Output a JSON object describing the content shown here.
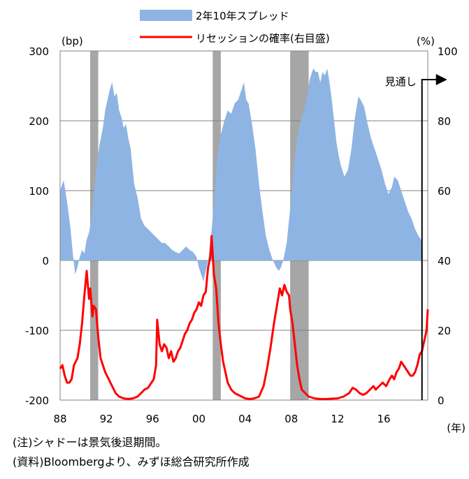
{
  "chart_data": {
    "type": "area",
    "legend": {
      "placement": "top-center",
      "spread_label": "2年10年スプレッド",
      "recession_label": "リセッションの確率(右目盛)"
    },
    "y_left_unit": "(bp)",
    "y_right_unit": "(%)",
    "x_unit": "(年)",
    "forecast_label": "見通し",
    "ylim_left": [
      -200,
      300
    ],
    "ylim_right": [
      0,
      100
    ],
    "y_left_ticks": [
      "300",
      "200",
      "100",
      "0",
      "-100",
      "-200"
    ],
    "y_right_ticks": [
      "100",
      "80",
      "60",
      "40",
      "20",
      "0"
    ],
    "x_ticks": [
      "88",
      "92",
      "96",
      "00",
      "04",
      "08",
      "12",
      "16"
    ],
    "x_tick_values": [
      1988,
      1992,
      1996,
      2000,
      2004,
      2008,
      2012,
      2016
    ],
    "xlim": [
      1988,
      2019.8
    ],
    "grid": true,
    "colors": {
      "spread": "#8eb4e3",
      "recession": "#ff0000",
      "shade": "#a6a6a6"
    },
    "recession_periods": [
      [
        1990.6,
        1991.3
      ],
      [
        2001.2,
        2001.9
      ],
      [
        2007.9,
        2009.5
      ]
    ],
    "forecast_start": 2019.3,
    "series": [
      {
        "name": "2年10年スプレッド",
        "axis": "left",
        "points": [
          [
            1988.0,
            100
          ],
          [
            1988.3,
            115
          ],
          [
            1988.6,
            85
          ],
          [
            1988.9,
            45
          ],
          [
            1989.1,
            10
          ],
          [
            1989.3,
            -20
          ],
          [
            1989.5,
            -10
          ],
          [
            1989.7,
            5
          ],
          [
            1989.9,
            15
          ],
          [
            1990.1,
            10
          ],
          [
            1990.3,
            30
          ],
          [
            1990.5,
            40
          ],
          [
            1990.7,
            60
          ],
          [
            1990.9,
            95
          ],
          [
            1991.1,
            125
          ],
          [
            1991.4,
            165
          ],
          [
            1991.7,
            190
          ],
          [
            1991.9,
            215
          ],
          [
            1992.1,
            230
          ],
          [
            1992.3,
            245
          ],
          [
            1992.5,
            255
          ],
          [
            1992.7,
            235
          ],
          [
            1992.9,
            240
          ],
          [
            1993.1,
            215
          ],
          [
            1993.3,
            205
          ],
          [
            1993.5,
            190
          ],
          [
            1993.7,
            195
          ],
          [
            1993.9,
            175
          ],
          [
            1994.1,
            160
          ],
          [
            1994.4,
            110
          ],
          [
            1994.7,
            90
          ],
          [
            1995.0,
            60
          ],
          [
            1995.3,
            50
          ],
          [
            1995.6,
            45
          ],
          [
            1995.9,
            40
          ],
          [
            1996.2,
            35
          ],
          [
            1996.5,
            30
          ],
          [
            1996.8,
            25
          ],
          [
            1997.1,
            25
          ],
          [
            1997.4,
            20
          ],
          [
            1997.7,
            15
          ],
          [
            1998.0,
            12
          ],
          [
            1998.3,
            10
          ],
          [
            1998.6,
            15
          ],
          [
            1998.9,
            20
          ],
          [
            1999.2,
            15
          ],
          [
            1999.5,
            12
          ],
          [
            1999.8,
            5
          ],
          [
            2000.0,
            -10
          ],
          [
            2000.2,
            -20
          ],
          [
            2000.4,
            -30
          ],
          [
            2000.6,
            -15
          ],
          [
            2000.8,
            0
          ],
          [
            2001.0,
            25
          ],
          [
            2001.3,
            80
          ],
          [
            2001.6,
            150
          ],
          [
            2001.9,
            180
          ],
          [
            2002.2,
            200
          ],
          [
            2002.5,
            215
          ],
          [
            2002.8,
            210
          ],
          [
            2003.1,
            225
          ],
          [
            2003.4,
            230
          ],
          [
            2003.7,
            245
          ],
          [
            2003.9,
            255
          ],
          [
            2004.1,
            230
          ],
          [
            2004.3,
            225
          ],
          [
            2004.6,
            195
          ],
          [
            2004.9,
            160
          ],
          [
            2005.2,
            110
          ],
          [
            2005.5,
            70
          ],
          [
            2005.8,
            35
          ],
          [
            2006.1,
            15
          ],
          [
            2006.4,
            0
          ],
          [
            2006.7,
            -10
          ],
          [
            2006.9,
            -15
          ],
          [
            2007.1,
            -10
          ],
          [
            2007.3,
            0
          ],
          [
            2007.6,
            25
          ],
          [
            2007.9,
            75
          ],
          [
            2008.2,
            130
          ],
          [
            2008.5,
            175
          ],
          [
            2008.8,
            200
          ],
          [
            2009.1,
            215
          ],
          [
            2009.4,
            240
          ],
          [
            2009.6,
            260
          ],
          [
            2009.9,
            275
          ],
          [
            2010.1,
            270
          ],
          [
            2010.3,
            270
          ],
          [
            2010.5,
            255
          ],
          [
            2010.7,
            270
          ],
          [
            2010.9,
            265
          ],
          [
            2011.1,
            275
          ],
          [
            2011.3,
            255
          ],
          [
            2011.5,
            230
          ],
          [
            2011.7,
            200
          ],
          [
            2011.9,
            170
          ],
          [
            2012.1,
            150
          ],
          [
            2012.3,
            135
          ],
          [
            2012.6,
            120
          ],
          [
            2012.9,
            130
          ],
          [
            2013.2,
            160
          ],
          [
            2013.5,
            205
          ],
          [
            2013.8,
            235
          ],
          [
            2014.0,
            230
          ],
          [
            2014.3,
            220
          ],
          [
            2014.6,
            195
          ],
          [
            2014.9,
            175
          ],
          [
            2015.2,
            160
          ],
          [
            2015.5,
            145
          ],
          [
            2015.8,
            130
          ],
          [
            2016.1,
            110
          ],
          [
            2016.4,
            95
          ],
          [
            2016.7,
            105
          ],
          [
            2016.9,
            120
          ],
          [
            2017.2,
            115
          ],
          [
            2017.5,
            100
          ],
          [
            2017.8,
            85
          ],
          [
            2018.1,
            70
          ],
          [
            2018.4,
            60
          ],
          [
            2018.7,
            45
          ],
          [
            2019.0,
            35
          ],
          [
            2019.2,
            30
          ],
          [
            2019.3,
            25
          ]
        ]
      },
      {
        "name": "リセッションの確率(右目盛)",
        "axis": "right",
        "points": [
          [
            1988.0,
            9
          ],
          [
            1988.2,
            10
          ],
          [
            1988.4,
            7
          ],
          [
            1988.6,
            5
          ],
          [
            1988.8,
            5
          ],
          [
            1989.0,
            6
          ],
          [
            1989.2,
            10
          ],
          [
            1989.5,
            12
          ],
          [
            1989.7,
            16
          ],
          [
            1989.9,
            22
          ],
          [
            1990.1,
            30
          ],
          [
            1990.3,
            37
          ],
          [
            1990.5,
            29
          ],
          [
            1990.6,
            32
          ],
          [
            1990.8,
            24
          ],
          [
            1990.9,
            27
          ],
          [
            1991.1,
            26
          ],
          [
            1991.3,
            18
          ],
          [
            1991.5,
            12
          ],
          [
            1991.7,
            10
          ],
          [
            1991.9,
            8
          ],
          [
            1992.2,
            6
          ],
          [
            1992.5,
            4
          ],
          [
            1992.8,
            2
          ],
          [
            1993.1,
            1
          ],
          [
            1993.5,
            0.5
          ],
          [
            1993.9,
            0.3
          ],
          [
            1994.3,
            0.5
          ],
          [
            1994.7,
            1
          ],
          [
            1995.0,
            2
          ],
          [
            1995.3,
            3
          ],
          [
            1995.6,
            3.5
          ],
          [
            1995.9,
            5
          ],
          [
            1996.1,
            6
          ],
          [
            1996.3,
            10
          ],
          [
            1996.4,
            23
          ],
          [
            1996.6,
            16
          ],
          [
            1996.8,
            14
          ],
          [
            1997.0,
            16
          ],
          [
            1997.2,
            15
          ],
          [
            1997.4,
            12
          ],
          [
            1997.6,
            14
          ],
          [
            1997.8,
            11
          ],
          [
            1998.0,
            12
          ],
          [
            1998.2,
            14
          ],
          [
            1998.4,
            15
          ],
          [
            1998.6,
            17
          ],
          [
            1998.8,
            19
          ],
          [
            1999.0,
            20
          ],
          [
            1999.2,
            22
          ],
          [
            1999.4,
            23
          ],
          [
            1999.6,
            25
          ],
          [
            1999.8,
            26
          ],
          [
            2000.0,
            28
          ],
          [
            2000.2,
            27
          ],
          [
            2000.4,
            30
          ],
          [
            2000.6,
            31
          ],
          [
            2000.8,
            38
          ],
          [
            2001.0,
            41
          ],
          [
            2001.1,
            47
          ],
          [
            2001.3,
            36
          ],
          [
            2001.5,
            32
          ],
          [
            2001.7,
            22
          ],
          [
            2001.9,
            16
          ],
          [
            2002.1,
            11
          ],
          [
            2002.3,
            8
          ],
          [
            2002.5,
            5
          ],
          [
            2002.8,
            3
          ],
          [
            2003.1,
            2
          ],
          [
            2003.4,
            1.5
          ],
          [
            2003.7,
            1
          ],
          [
            2004.0,
            0.5
          ],
          [
            2004.4,
            0.3
          ],
          [
            2004.8,
            0.5
          ],
          [
            2005.2,
            1
          ],
          [
            2005.6,
            4
          ],
          [
            2005.9,
            9
          ],
          [
            2006.2,
            15
          ],
          [
            2006.5,
            22
          ],
          [
            2006.8,
            28
          ],
          [
            2007.0,
            32
          ],
          [
            2007.2,
            30
          ],
          [
            2007.4,
            33
          ],
          [
            2007.6,
            31
          ],
          [
            2007.8,
            30
          ],
          [
            2007.9,
            26
          ],
          [
            2008.1,
            22
          ],
          [
            2008.3,
            16
          ],
          [
            2008.5,
            10
          ],
          [
            2008.7,
            6
          ],
          [
            2008.9,
            3
          ],
          [
            2009.2,
            2
          ],
          [
            2009.5,
            1
          ],
          [
            2010.0,
            0.5
          ],
          [
            2010.5,
            0.3
          ],
          [
            2011.0,
            0.3
          ],
          [
            2011.5,
            0.4
          ],
          [
            2012.0,
            0.5
          ],
          [
            2012.5,
            1
          ],
          [
            2013.0,
            2
          ],
          [
            2013.3,
            3.5
          ],
          [
            2013.6,
            3
          ],
          [
            2013.9,
            2
          ],
          [
            2014.2,
            1.5
          ],
          [
            2014.5,
            2
          ],
          [
            2014.8,
            3
          ],
          [
            2015.1,
            4
          ],
          [
            2015.3,
            3
          ],
          [
            2015.6,
            4
          ],
          [
            2015.9,
            5
          ],
          [
            2016.2,
            4
          ],
          [
            2016.5,
            6
          ],
          [
            2016.7,
            7
          ],
          [
            2016.9,
            6
          ],
          [
            2017.1,
            8
          ],
          [
            2017.3,
            9
          ],
          [
            2017.5,
            11
          ],
          [
            2017.7,
            10
          ],
          [
            2017.9,
            9
          ],
          [
            2018.1,
            8
          ],
          [
            2018.3,
            7
          ],
          [
            2018.5,
            7
          ],
          [
            2018.7,
            8
          ],
          [
            2018.9,
            10
          ],
          [
            2019.1,
            13
          ],
          [
            2019.3,
            14
          ],
          [
            2019.5,
            17
          ],
          [
            2019.7,
            20
          ],
          [
            2019.8,
            26
          ]
        ]
      }
    ]
  },
  "notes": {
    "note1": "(注)シャドーは景気後退期間。",
    "note2": "(資料)Bloombergより、みずほ総合研究所作成"
  }
}
